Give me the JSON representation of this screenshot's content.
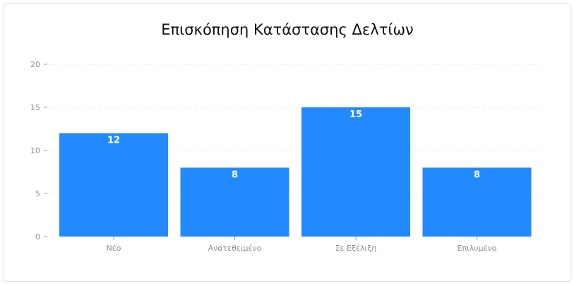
{
  "chart_data": {
    "type": "bar",
    "title": "Επισκόπηση Κατάστασης Δελτίων",
    "xlabel": "",
    "ylabel": "",
    "categories": [
      "Νέο",
      "Ανατεθειμένο",
      "Σε Εξέλιξη",
      "Επιλυμένο"
    ],
    "values": [
      12,
      8,
      15,
      8
    ],
    "ylim": [
      0,
      20
    ],
    "yticks": [
      0,
      5,
      10,
      15,
      20
    ],
    "grid": true,
    "bar_color": "#2389ff"
  }
}
